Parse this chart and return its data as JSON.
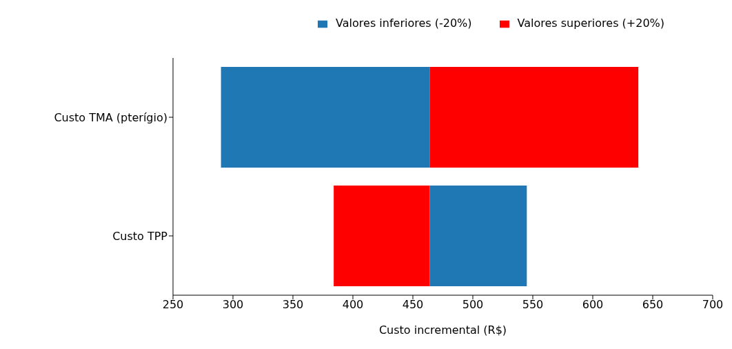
{
  "chart_data": {
    "type": "bar",
    "orientation": "horizontal",
    "xlabel": "Custo incremental (R$)",
    "categories": [
      "Custo TMA (pterígio)",
      "Custo TPP"
    ],
    "series": [
      {
        "name": "Valores inferiores (-20%)",
        "color": "#1f77b4",
        "base": [
          290,
          464
        ],
        "values": [
          174,
          81
        ]
      },
      {
        "name": "Valores superiores (+20%)",
        "color": "#ff0000",
        "base": [
          464,
          384
        ],
        "values": [
          174,
          80
        ]
      }
    ],
    "xlim": [
      250,
      700
    ],
    "xticks": [
      250,
      300,
      350,
      400,
      450,
      500,
      550,
      600,
      650,
      700
    ],
    "grid": false,
    "legend": "top right"
  }
}
